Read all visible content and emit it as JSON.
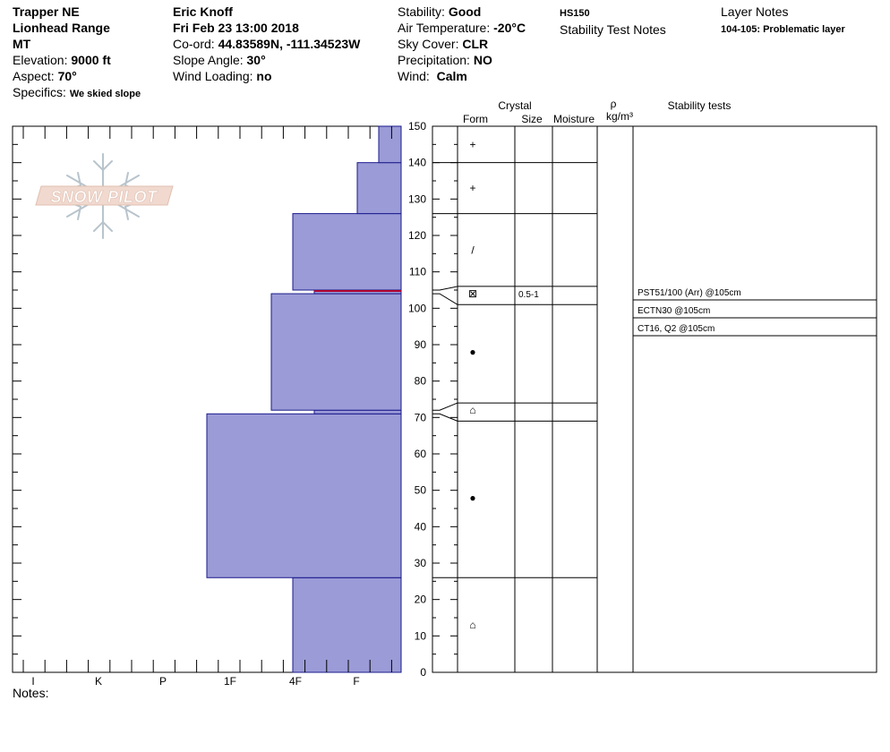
{
  "header": {
    "location": "Trapper NE",
    "range": "Lionhead Range",
    "state": "MT",
    "elevation_label": "Elevation:",
    "elevation": "9000 ft",
    "aspect_label": "Aspect:",
    "aspect": "70°",
    "specifics_label": "Specifics:",
    "specifics": "We skied slope",
    "observer": "Eric Knoff",
    "datetime": "Fri Feb 23 13:00 2018",
    "coord_label": "Co-ord:",
    "coord": "44.83589N, -111.34523W",
    "slope_label": "Slope Angle:",
    "slope": "30°",
    "wind_loading_label": "Wind Loading:",
    "wind_loading": "no",
    "stability_label": "Stability:",
    "stability": "Good",
    "air_temp_label": "Air Temperature:",
    "air_temp": "-20°C",
    "sky_label": "Sky Cover:",
    "sky": "CLR",
    "precip_label": "Precipitation:",
    "precip": "NO",
    "wind_label": "Wind:",
    "wind": "Calm",
    "hs": "HS150",
    "stability_notes_title": "Stability Test Notes",
    "layer_notes_title": "Layer Notes",
    "layer_note": "104-105: Problematic layer"
  },
  "logo_text": "SNOW PILOT",
  "notes_label": "Notes:",
  "colors": {
    "layer_fill": "#9b9bd7",
    "layer_stroke": "#1a1a8c",
    "weak_layer_line": "#b00030"
  },
  "chart_data": {
    "type": "snow-profile",
    "y_axis": {
      "min": 0,
      "max": 150,
      "ticks": [
        0,
        10,
        20,
        30,
        40,
        50,
        60,
        70,
        80,
        90,
        100,
        110,
        120,
        130,
        140,
        150
      ]
    },
    "hardness_scale": [
      "I",
      "K",
      "P",
      "1F",
      "4F",
      "F"
    ],
    "table_headers": {
      "crystal": "Crystal",
      "form": "Form",
      "size": "Size",
      "moisture": "Moisture",
      "density_symbol": "ρ",
      "density_unit": "kg/m³",
      "stability_tests": "Stability tests"
    },
    "hardness_profile": [
      {
        "bottom": 0,
        "top": 26,
        "hardness": "4F"
      },
      {
        "bottom": 26,
        "top": 71,
        "hardness": "1F"
      },
      {
        "bottom": 71,
        "top": 72,
        "hardness": "4F-"
      },
      {
        "bottom": 72,
        "top": 104,
        "hardness": "4F+"
      },
      {
        "bottom": 104,
        "top": 105,
        "hardness": "4F-"
      },
      {
        "bottom": 105,
        "top": 126,
        "hardness": "4F"
      },
      {
        "bottom": 126,
        "top": 140,
        "hardness": "F+"
      },
      {
        "bottom": 140,
        "top": 150,
        "hardness": "F"
      }
    ],
    "layer_boundaries": [
      150,
      140,
      126,
      106,
      101,
      74,
      69,
      26
    ],
    "crystal_rows": [
      {
        "height": 145,
        "form_symbol": "+",
        "size": ""
      },
      {
        "height": 133,
        "form_symbol": "+",
        "size": ""
      },
      {
        "height": 116,
        "form_symbol": "/",
        "size": ""
      },
      {
        "height": 104,
        "form_symbol": "⊠",
        "size": "0.5-1"
      },
      {
        "height": 88,
        "form_symbol": "●",
        "size": ""
      },
      {
        "height": 72,
        "form_symbol": "⌂",
        "size": ""
      },
      {
        "height": 48,
        "form_symbol": "●",
        "size": ""
      },
      {
        "height": 13,
        "form_symbol": "⌂",
        "size": ""
      }
    ],
    "stability_tests": [
      "PST51/100 (Arr) @105cm",
      "ECTN30 @105cm",
      "CT16, Q2 @105cm"
    ]
  }
}
